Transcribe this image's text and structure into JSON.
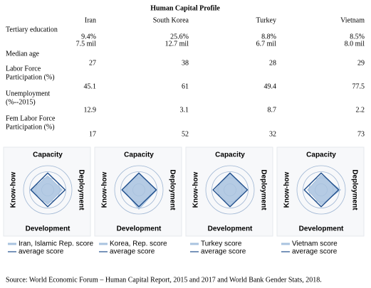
{
  "title": "Human Capital Profile",
  "table": {
    "columns": [
      "Iran",
      "South Korea",
      "Turkey",
      "Vietnam"
    ],
    "rows": [
      {
        "label": [
          "Tertiary education"
        ],
        "cells": [
          [
            "9.4%",
            "7.5 mil"
          ],
          [
            "25.6%",
            "12.7 mil"
          ],
          [
            "8.8%",
            "6.7 mil"
          ],
          [
            "8.5%",
            "8.0 mil"
          ]
        ]
      },
      {
        "label": [
          "Median age"
        ],
        "cells": [
          [
            "27"
          ],
          [
            "38"
          ],
          [
            "28"
          ],
          [
            "29"
          ]
        ]
      },
      {
        "label": [
          "Labor Force",
          "Participation (%)"
        ],
        "cells": [
          [
            "45.1"
          ],
          [
            "61"
          ],
          [
            "49.4"
          ],
          [
            "77.5"
          ]
        ]
      },
      {
        "label": [
          "Unemployment",
          "(%--2015)"
        ],
        "cells": [
          [
            "12.9"
          ],
          [
            "3.1"
          ],
          [
            "8.7"
          ],
          [
            "2.2"
          ]
        ]
      },
      {
        "label": [
          "Fem Labor Force",
          "Participation (%)"
        ],
        "cells": [
          [
            "17"
          ],
          [
            "52"
          ],
          [
            "32"
          ],
          [
            "73"
          ]
        ]
      }
    ]
  },
  "chart_data": [
    {
      "type": "radar",
      "axes": [
        "Capacity",
        "Deployment",
        "Development",
        "Know-how"
      ],
      "rlim": [
        0,
        100
      ],
      "rticks": [
        25,
        50,
        75,
        100
      ],
      "series": [
        {
          "name": "Iran, Islamic Rep. score",
          "color": "#a9c3df",
          "values": [
            58,
            60,
            60,
            66
          ]
        },
        {
          "name": "average score",
          "color": "#1f4e8c",
          "values": [
            70,
            72,
            70,
            70
          ]
        }
      ]
    },
    {
      "type": "radar",
      "axes": [
        "Capacity",
        "Deployment",
        "Development",
        "Know-how"
      ],
      "rlim": [
        0,
        100
      ],
      "rticks": [
        25,
        50,
        75,
        100
      ],
      "series": [
        {
          "name": "Korea, Rep. score",
          "color": "#a9c3df",
          "values": [
            68,
            74,
            80,
            64
          ]
        },
        {
          "name": "average score",
          "color": "#1f4e8c",
          "values": [
            70,
            72,
            70,
            70
          ]
        }
      ]
    },
    {
      "type": "radar",
      "axes": [
        "Capacity",
        "Deployment",
        "Development",
        "Know-how"
      ],
      "rlim": [
        0,
        100
      ],
      "rticks": [
        25,
        50,
        75,
        100
      ],
      "series": [
        {
          "name": "Turkey score",
          "color": "#a9c3df",
          "values": [
            66,
            66,
            64,
            62
          ]
        },
        {
          "name": "average score",
          "color": "#1f4e8c",
          "values": [
            70,
            72,
            70,
            70
          ]
        }
      ]
    },
    {
      "type": "radar",
      "axes": [
        "Capacity",
        "Deployment",
        "Development",
        "Know-how"
      ],
      "rlim": [
        0,
        100
      ],
      "rticks": [
        25,
        50,
        75,
        100
      ],
      "series": [
        {
          "name": "Vietnam score",
          "color": "#a9c3df",
          "values": [
            62,
            80,
            62,
            56
          ]
        },
        {
          "name": "average score",
          "color": "#1f4e8c",
          "values": [
            70,
            72,
            70,
            70
          ]
        }
      ]
    }
  ],
  "source": "Source: World Economic Forum – Human Capital Report, 2015 and 2017 and World Bank Gender Stats, 2018."
}
